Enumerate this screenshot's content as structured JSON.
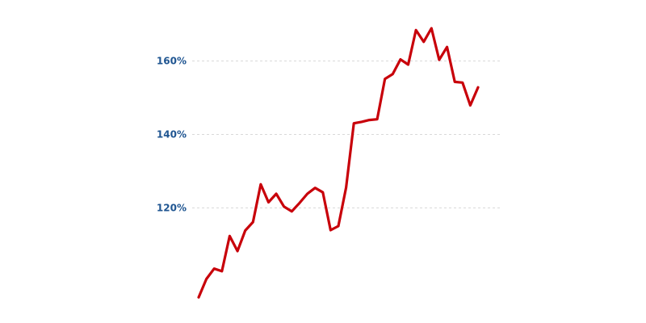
{
  "colors": {
    "line": "#c8000a",
    "tick_label": "#1f5591",
    "grid": "#d9d9d9"
  },
  "chart_data": {
    "type": "line",
    "grid": true,
    "y_ticks": [
      {
        "value": 160,
        "label": "160%"
      },
      {
        "value": 140,
        "label": "140%"
      },
      {
        "value": 120,
        "label": "120%"
      }
    ],
    "ylim": [
      88.5,
      176.5
    ],
    "series": [
      {
        "values": [
          95.5,
          100.5,
          103.3,
          102.6,
          112.2,
          108.1,
          113.7,
          116.0,
          126.3,
          121.4,
          123.7,
          120.2,
          118.9,
          121.2,
          123.7,
          125.3,
          124.1,
          113.8,
          114.9,
          125.4,
          142.9,
          143.3,
          143.8,
          144.0,
          155.0,
          156.3,
          160.3,
          158.9,
          168.3,
          165.1,
          168.8,
          160.2,
          163.7,
          154.2,
          154.0,
          147.8,
          152.7
        ]
      }
    ]
  }
}
